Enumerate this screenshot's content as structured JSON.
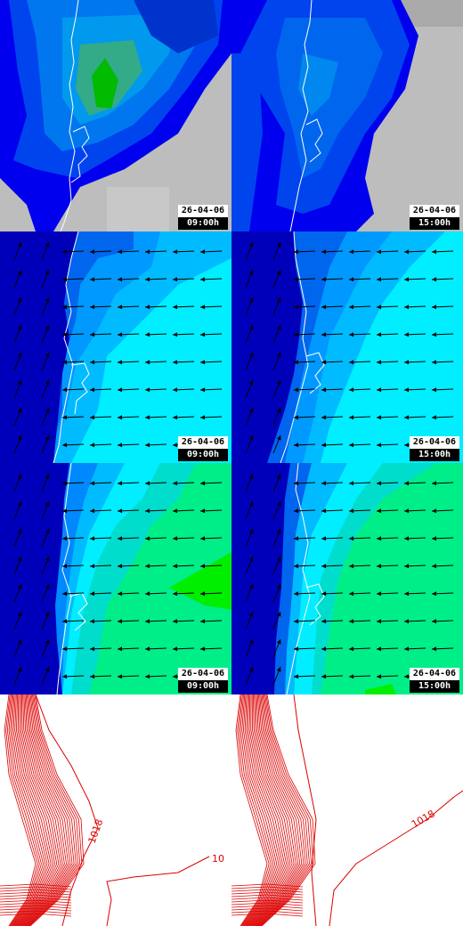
{
  "rows": [
    {
      "name": "precipitation",
      "panels": [
        {
          "date": "26-04-06",
          "time": "09:00h"
        },
        {
          "date": "26-04-06",
          "time": "15:00h"
        }
      ]
    },
    {
      "name": "wind-lower",
      "panels": [
        {
          "date": "26-04-06",
          "time": "09:00h"
        },
        {
          "date": "26-04-06",
          "time": "15:00h"
        }
      ]
    },
    {
      "name": "wind-upper",
      "panels": [
        {
          "date": "26-04-06",
          "time": "09:00h"
        },
        {
          "date": "26-04-06",
          "time": "15:00h"
        }
      ]
    },
    {
      "name": "pressure",
      "panels": [
        {
          "isobar_label": "1018",
          "isobar_label_2": "10"
        },
        {
          "isobar_label": "1018"
        }
      ]
    }
  ],
  "colors": {
    "sea_dark": "#0000bb",
    "mid_blue": "#0044ee",
    "light_blue": "#0099ff",
    "cyan": "#00eeff",
    "aqua": "#00ddcc",
    "green": "#00ee88",
    "bright_green": "#00ee00",
    "land_gray": "#c0c0c0",
    "isobar_red": "#dd0000",
    "coast_white": "#ffffff"
  }
}
